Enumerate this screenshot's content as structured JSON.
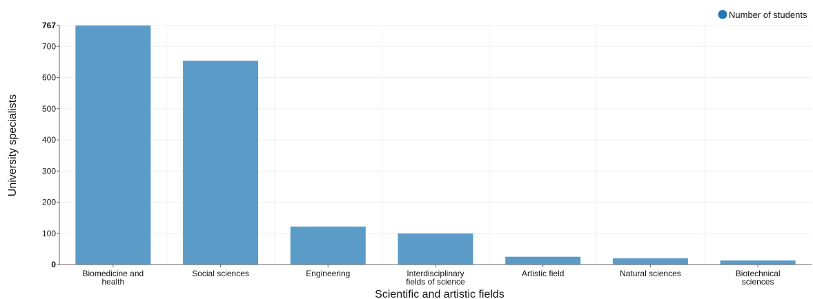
{
  "chart_data": {
    "type": "bar",
    "title": "",
    "xlabel": "Scientific and artistic fields",
    "ylabel": "University specialists",
    "categories": [
      [
        "Biomedicine and",
        "health"
      ],
      [
        "Social sciences"
      ],
      [
        "Engineering"
      ],
      [
        "Interdisciplinary",
        "fields of science"
      ],
      [
        "Artistic field"
      ],
      [
        "Natural sciences"
      ],
      [
        "Biotechnical",
        "sciences"
      ]
    ],
    "series": [
      {
        "name": "Number of students",
        "color": "#5b9bc8",
        "values": [
          767,
          654,
          122,
          100,
          25,
          20,
          13
        ]
      }
    ],
    "ylim": [
      0,
      767
    ],
    "yticks": [
      "0",
      "100",
      "200",
      "300",
      "400",
      "500",
      "600",
      "700",
      "767"
    ],
    "grid": true,
    "legend": {
      "position": "top-right",
      "marker_color": "#1f77b4"
    }
  }
}
